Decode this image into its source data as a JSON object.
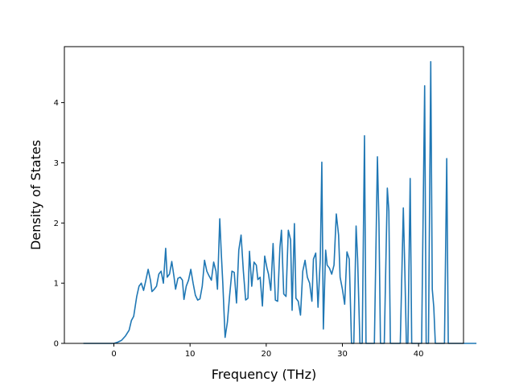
{
  "chart_data": {
    "type": "line",
    "title": "",
    "xlabel": "Frequency (THz)",
    "ylabel": "Density of States",
    "xlim": [
      -6.5,
      45.9
    ],
    "ylim": [
      0,
      4.93
    ],
    "xticks": [
      0,
      10,
      20,
      30,
      40
    ],
    "yticks": [
      0,
      1,
      2,
      3,
      4
    ],
    "grid": false,
    "legend": "none",
    "series_color": "#1f77b4",
    "series": [
      {
        "points": [
          [
            -4.0,
            0
          ],
          [
            -2.0,
            0
          ],
          [
            0.0,
            0
          ],
          [
            0.5,
            0.02
          ],
          [
            1.0,
            0.05
          ],
          [
            1.5,
            0.12
          ],
          [
            2.0,
            0.22
          ],
          [
            2.3,
            0.38
          ],
          [
            2.6,
            0.45
          ],
          [
            3.0,
            0.78
          ],
          [
            3.3,
            0.95
          ],
          [
            3.6,
            1.0
          ],
          [
            3.9,
            0.88
          ],
          [
            4.2,
            1.05
          ],
          [
            4.5,
            1.23
          ],
          [
            4.8,
            1.05
          ],
          [
            5.0,
            0.86
          ],
          [
            5.3,
            0.9
          ],
          [
            5.6,
            0.95
          ],
          [
            5.9,
            1.15
          ],
          [
            6.2,
            1.2
          ],
          [
            6.5,
            1.0
          ],
          [
            6.8,
            1.58
          ],
          [
            7.0,
            1.1
          ],
          [
            7.3,
            1.15
          ],
          [
            7.6,
            1.36
          ],
          [
            7.9,
            1.1
          ],
          [
            8.1,
            0.9
          ],
          [
            8.4,
            1.08
          ],
          [
            8.7,
            1.1
          ],
          [
            9.0,
            1.05
          ],
          [
            9.2,
            0.73
          ],
          [
            9.5,
            0.95
          ],
          [
            9.8,
            1.05
          ],
          [
            10.1,
            1.23
          ],
          [
            10.4,
            1.0
          ],
          [
            10.7,
            0.8
          ],
          [
            11.0,
            0.72
          ],
          [
            11.3,
            0.74
          ],
          [
            11.6,
            0.95
          ],
          [
            11.9,
            1.38
          ],
          [
            12.2,
            1.2
          ],
          [
            12.5,
            1.12
          ],
          [
            12.8,
            1.05
          ],
          [
            13.1,
            1.35
          ],
          [
            13.4,
            1.2
          ],
          [
            13.6,
            0.9
          ],
          [
            13.9,
            2.07
          ],
          [
            14.1,
            1.5
          ],
          [
            14.3,
            1.0
          ],
          [
            14.6,
            0.1
          ],
          [
            14.9,
            0.35
          ],
          [
            15.2,
            0.8
          ],
          [
            15.5,
            1.2
          ],
          [
            15.8,
            1.18
          ],
          [
            16.1,
            0.67
          ],
          [
            16.4,
            1.55
          ],
          [
            16.7,
            1.8
          ],
          [
            17.0,
            1.2
          ],
          [
            17.3,
            0.72
          ],
          [
            17.6,
            0.75
          ],
          [
            17.8,
            1.53
          ],
          [
            18.1,
            0.95
          ],
          [
            18.4,
            1.35
          ],
          [
            18.7,
            1.3
          ],
          [
            18.9,
            1.06
          ],
          [
            19.2,
            1.1
          ],
          [
            19.5,
            0.62
          ],
          [
            19.8,
            1.45
          ],
          [
            20.1,
            1.25
          ],
          [
            20.3,
            1.15
          ],
          [
            20.6,
            0.88
          ],
          [
            20.9,
            1.66
          ],
          [
            21.2,
            0.72
          ],
          [
            21.5,
            0.7
          ],
          [
            21.8,
            1.6
          ],
          [
            22.0,
            1.88
          ],
          [
            22.3,
            0.82
          ],
          [
            22.6,
            0.78
          ],
          [
            22.9,
            1.88
          ],
          [
            23.2,
            1.72
          ],
          [
            23.4,
            0.55
          ],
          [
            23.7,
            1.99
          ],
          [
            23.9,
            0.75
          ],
          [
            24.2,
            0.7
          ],
          [
            24.5,
            0.47
          ],
          [
            24.8,
            1.2
          ],
          [
            25.1,
            1.38
          ],
          [
            25.4,
            1.1
          ],
          [
            25.7,
            1.0
          ],
          [
            26.0,
            0.7
          ],
          [
            26.2,
            1.4
          ],
          [
            26.5,
            1.5
          ],
          [
            26.8,
            0.6
          ],
          [
            27.1,
            1.4
          ],
          [
            27.3,
            3.01
          ],
          [
            27.5,
            0.24
          ],
          [
            27.8,
            1.55
          ],
          [
            28.0,
            1.3
          ],
          [
            28.3,
            1.25
          ],
          [
            28.6,
            1.15
          ],
          [
            28.9,
            1.3
          ],
          [
            29.2,
            2.15
          ],
          [
            29.5,
            1.8
          ],
          [
            29.7,
            1.1
          ],
          [
            30.0,
            0.9
          ],
          [
            30.3,
            0.65
          ],
          [
            30.6,
            1.52
          ],
          [
            30.9,
            1.4
          ],
          [
            31.2,
            0.0
          ],
          [
            31.5,
            0.0
          ],
          [
            31.8,
            1.95
          ],
          [
            32.0,
            1.4
          ],
          [
            32.3,
            0.0
          ],
          [
            32.6,
            0.0
          ],
          [
            32.9,
            3.45
          ],
          [
            33.1,
            0.0
          ],
          [
            33.4,
            0.0
          ],
          [
            33.8,
            0.0
          ],
          [
            34.2,
            0.0
          ],
          [
            34.6,
            3.1
          ],
          [
            34.8,
            2.0
          ],
          [
            35.0,
            0.0
          ],
          [
            35.5,
            0.0
          ],
          [
            35.9,
            2.58
          ],
          [
            36.1,
            2.2
          ],
          [
            36.3,
            0.0
          ],
          [
            36.8,
            0.0
          ],
          [
            37.2,
            0.0
          ],
          [
            37.6,
            0.0
          ],
          [
            38.0,
            2.25
          ],
          [
            38.2,
            1.2
          ],
          [
            38.4,
            0.0
          ],
          [
            38.6,
            0.0
          ],
          [
            38.9,
            2.74
          ],
          [
            39.1,
            0.0
          ],
          [
            39.5,
            0.0
          ],
          [
            40.0,
            0.0
          ],
          [
            40.4,
            0.0
          ],
          [
            40.8,
            4.28
          ],
          [
            41.0,
            0.0
          ],
          [
            41.3,
            0.0
          ],
          [
            41.6,
            4.68
          ],
          [
            41.8,
            0.9
          ],
          [
            42.0,
            0.6
          ],
          [
            42.2,
            0.0
          ],
          [
            42.6,
            0.0
          ],
          [
            43.0,
            0.0
          ],
          [
            43.4,
            0.0
          ],
          [
            43.7,
            3.07
          ],
          [
            43.9,
            0.0
          ],
          [
            44.3,
            0.0
          ],
          [
            45.0,
            0.0
          ],
          [
            47.6,
            0.0
          ]
        ]
      }
    ]
  }
}
